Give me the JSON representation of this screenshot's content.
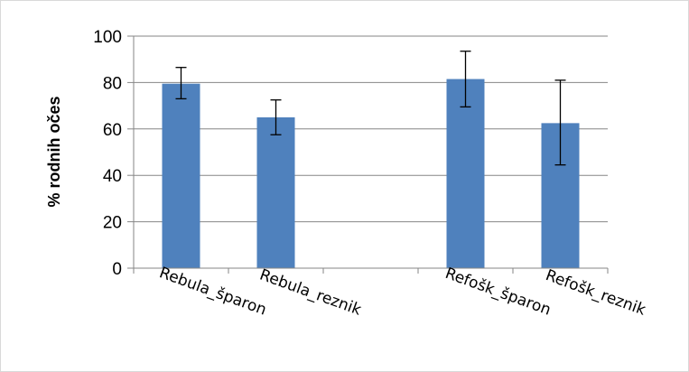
{
  "chart_data": {
    "type": "bar",
    "title": "",
    "xlabel": "",
    "ylabel": "% rodnih očes",
    "ylim": [
      0,
      100
    ],
    "yticks": [
      "0",
      "20",
      "40",
      "60",
      "80",
      "100"
    ],
    "grid": true,
    "legend": "none",
    "categories": [
      "Rebula_šparon",
      "Rebula_reznik",
      "",
      "Refošk_šparon",
      "Refošk_reznik"
    ],
    "series": [
      {
        "values": [
          79.5,
          65,
          null,
          81.5,
          62.5
        ],
        "error_low": [
          73,
          57.5,
          null,
          69.5,
          44.5
        ],
        "error_high": [
          86.5,
          72.5,
          null,
          93.5,
          81
        ],
        "color": "#4f81bd"
      }
    ]
  }
}
